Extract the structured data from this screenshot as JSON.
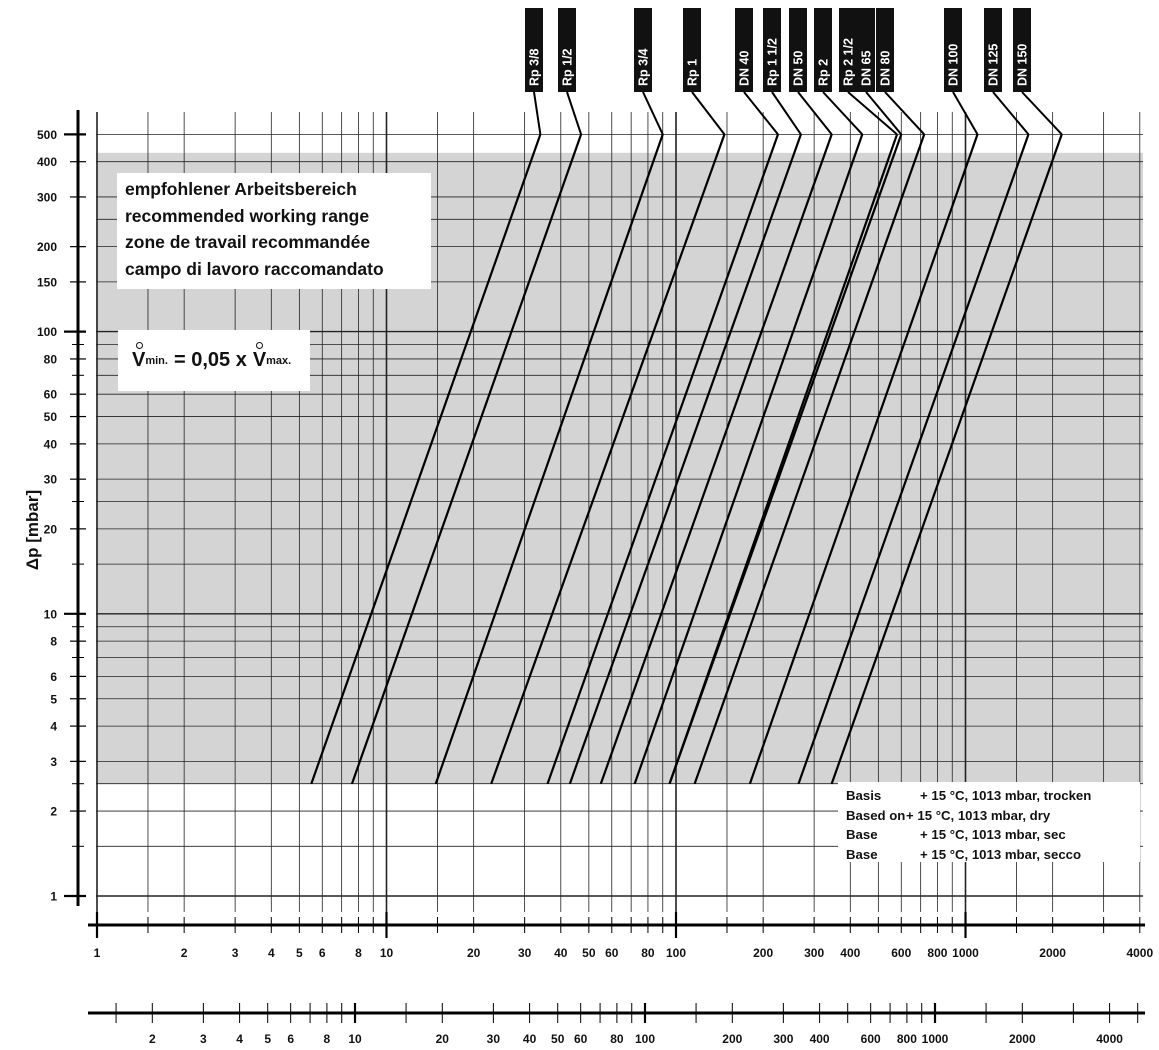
{
  "chart_data": {
    "type": "line",
    "y_axis": {
      "label": "Δp [mbar]",
      "scale": "log",
      "range": [
        0.9,
        550
      ],
      "ticks": [
        "1",
        "2",
        "3",
        "4",
        "5",
        "6",
        "8",
        "10",
        "20",
        "30",
        "40",
        "50",
        "60",
        "80",
        "100",
        "150",
        "200",
        "300",
        "400",
        "500"
      ]
    },
    "x_axes": [
      {
        "label": "",
        "scale": "log",
        "ticks": [
          "1",
          "2",
          "3",
          "4",
          "5",
          "6",
          "8",
          "10",
          "20",
          "30",
          "40",
          "50",
          "60",
          "80",
          "100",
          "200",
          "300",
          "400",
          "600",
          "800",
          "1000",
          "2000",
          "4000"
        ]
      },
      {
        "label": "",
        "scale": "log",
        "ticks": [
          "2",
          "3",
          "4",
          "5",
          "6",
          "8",
          "10",
          "20",
          "30",
          "40",
          "50",
          "60",
          "80",
          "100",
          "200",
          "300",
          "400",
          "600",
          "800",
          "1000",
          "2000",
          "4000"
        ]
      }
    ],
    "series": [
      {
        "name": "Rp 3/8",
        "x": [
          5.5,
          34
        ],
        "y": [
          2.5,
          500
        ]
      },
      {
        "name": "Rp 1/2",
        "x": [
          7.6,
          47
        ],
        "y": [
          2.5,
          500
        ]
      },
      {
        "name": "Rp 3/4",
        "x": [
          14.8,
          90
        ],
        "y": [
          2.5,
          500
        ]
      },
      {
        "name": "Rp 1",
        "x": [
          23,
          147
        ],
        "y": [
          2.5,
          500
        ]
      },
      {
        "name": "DN 40",
        "x": [
          36,
          225
        ],
        "y": [
          2.5,
          500
        ]
      },
      {
        "name": "Rp 1 1/2",
        "x": [
          43,
          270
        ],
        "y": [
          2.5,
          500
        ]
      },
      {
        "name": "DN 50",
        "x": [
          55,
          345
        ],
        "y": [
          2.5,
          500
        ]
      },
      {
        "name": "Rp 2",
        "x": [
          72,
          440
        ],
        "y": [
          2.5,
          500
        ]
      },
      {
        "name": "Rp 2 1/2",
        "x": [
          95,
          580
        ],
        "y": [
          2.5,
          500
        ]
      },
      {
        "name": "DN 65",
        "x": [
          95,
          600
        ],
        "y": [
          2.5,
          500
        ]
      },
      {
        "name": "DN 80",
        "x": [
          116,
          720
        ],
        "y": [
          2.5,
          500
        ]
      },
      {
        "name": "DN 100",
        "x": [
          180,
          1100
        ],
        "y": [
          2.5,
          500
        ]
      },
      {
        "name": "DN 125",
        "x": [
          265,
          1650
        ],
        "y": [
          2.5,
          500
        ]
      },
      {
        "name": "DN 150",
        "x": [
          345,
          2150
        ],
        "y": [
          2.5,
          500
        ]
      }
    ],
    "shaded_region": {
      "y_range": [
        2.5,
        430
      ]
    },
    "grid": true
  },
  "annotations": {
    "range_lines": [
      "empfohlener Arbeitsbereich",
      "recommended working range",
      "zone de travail recommandée",
      "campo di lavoro raccomandato"
    ],
    "vmin": {
      "v1": "V",
      "sub1": "min.",
      "mid": "= 0,05 x",
      "v2": "V",
      "sub2": "max."
    },
    "basis": [
      {
        "key": "Basis",
        "value": "+ 15 °C, 1013 mbar, trocken"
      },
      {
        "key": "Based on",
        "value": "+ 15 °C, 1013 mbar, dry"
      },
      {
        "key": "Base",
        "value": "+ 15 °C, 1013 mbar, sec"
      },
      {
        "key": "Base",
        "value": "+ 15 °C, 1013 mbar, secco"
      }
    ]
  },
  "colors": {
    "shade": "#d4d4d4",
    "grid": "#222222",
    "curve": "#000000",
    "label_bg": "#111111"
  }
}
